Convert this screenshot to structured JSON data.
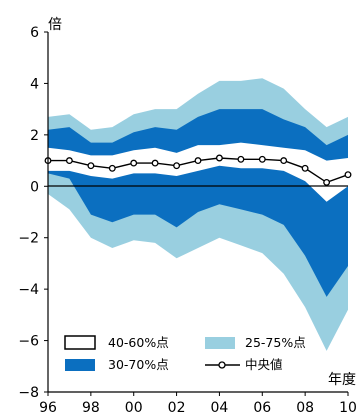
{
  "chart_data": {
    "type": "area",
    "x": [
      "96",
      "97",
      "98",
      "99",
      "00",
      "01",
      "02",
      "03",
      "04",
      "05",
      "06",
      "07",
      "08",
      "09",
      "10"
    ],
    "xticks": [
      "96",
      "98",
      "00",
      "02",
      "04",
      "06",
      "08",
      "10"
    ],
    "yticks": [
      "6",
      "4",
      "2",
      "0",
      "−2",
      "−4",
      "−6",
      "−8"
    ],
    "ylim": [
      -8,
      6
    ],
    "ylabel": "倍",
    "xlabel": "年度",
    "zero_line": true,
    "bands": [
      {
        "name": "25-75%点",
        "color": "#99cfe0",
        "upper": [
          2.7,
          2.8,
          2.2,
          2.3,
          2.8,
          3.0,
          3.0,
          3.6,
          4.1,
          4.1,
          4.2,
          3.8,
          3.0,
          2.3,
          2.7
        ],
        "lower": [
          -0.3,
          -0.9,
          -2.0,
          -2.4,
          -2.1,
          -2.2,
          -2.8,
          -2.4,
          -2.0,
          -2.3,
          -2.6,
          -3.4,
          -4.7,
          -6.4,
          -4.8
        ]
      },
      {
        "name": "30-70%点",
        "color": "#0b6fc0",
        "upper": [
          2.2,
          2.3,
          1.7,
          1.7,
          2.1,
          2.3,
          2.2,
          2.7,
          3.0,
          3.0,
          3.0,
          2.6,
          2.3,
          1.6,
          2.0
        ],
        "lower": [
          0.5,
          0.3,
          -1.1,
          -1.4,
          -1.1,
          -1.1,
          -1.6,
          -1.0,
          -0.7,
          -0.9,
          -1.1,
          -1.5,
          -2.7,
          -4.3,
          -3.1
        ]
      },
      {
        "name": "40-60%点",
        "color": "#ffffff",
        "upper": [
          1.5,
          1.4,
          1.2,
          1.2,
          1.4,
          1.5,
          1.3,
          1.6,
          1.6,
          1.7,
          1.6,
          1.5,
          1.4,
          1.0,
          1.1
        ],
        "lower": [
          0.6,
          0.6,
          0.4,
          0.3,
          0.5,
          0.5,
          0.4,
          0.6,
          0.8,
          0.7,
          0.7,
          0.6,
          0.2,
          -0.6,
          0.0
        ]
      }
    ],
    "series": [
      {
        "name": "中央値",
        "values": [
          1.0,
          1.0,
          0.8,
          0.7,
          0.9,
          0.9,
          0.8,
          1.0,
          1.1,
          1.05,
          1.05,
          1.0,
          0.7,
          0.15,
          0.45
        ]
      }
    ],
    "legend": {
      "placement": "bottom-left",
      "items": [
        {
          "label": "40-60%点",
          "style": "box"
        },
        {
          "label": "25-75%点",
          "style": "light"
        },
        {
          "label": "30-70%点",
          "style": "dark"
        },
        {
          "label": "中央値",
          "style": "line-marker"
        }
      ]
    }
  }
}
